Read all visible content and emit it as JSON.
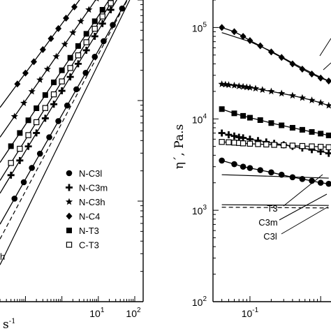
{
  "chart_data": [
    {
      "panel": "left",
      "type": "line",
      "xscale": "log",
      "yscale": "log",
      "xlim": [
        0.02,
        170
      ],
      "ylim": [
        0.001,
        1
      ],
      "x_tick_labels": [
        {
          "value": 10,
          "base": "10",
          "exp": "1"
        },
        {
          "value": 100,
          "base": "10",
          "exp": "2"
        }
      ],
      "xlabel_fragment": {
        "text": "s",
        "exp": "-1"
      },
      "cut_text": "h",
      "legend": {
        "placement": "lower-right",
        "entries": [
          {
            "label": "N-C3l",
            "marker": "circle"
          },
          {
            "label": "N-C3m",
            "marker": "plus"
          },
          {
            "label": "N-C3h",
            "marker": "star"
          },
          {
            "label": "N-C4",
            "marker": "diamond"
          },
          {
            "label": "N-T3",
            "marker": "square"
          },
          {
            "label": "C-T3",
            "marker": "open-square"
          }
        ]
      },
      "series": [
        {
          "marker": "diamond",
          "a": 0.58,
          "b": 0.49,
          "x": [
            0.06,
            0.1,
            0.17,
            0.3,
            0.5,
            0.8,
            1.3,
            2.2,
            3.7,
            6,
            10,
            17,
            30,
            50,
            85,
            140
          ]
        },
        {
          "marker": "star",
          "a": 0.33,
          "b": 0.52,
          "x": [
            0.05,
            0.09,
            0.15,
            0.25,
            0.4,
            0.7,
            1.2,
            2,
            3.3,
            5.5,
            9,
            15,
            26,
            45,
            75,
            130
          ]
        },
        {
          "marker": "square",
          "a": 0.2,
          "b": 0.54,
          "x": [
            0.04,
            0.07,
            0.12,
            0.2,
            0.35,
            0.6,
            1,
            1.7,
            2.8,
            4.7,
            8,
            13,
            22,
            38,
            65,
            110,
            160
          ]
        },
        {
          "marker": "open-square",
          "a": 0.155,
          "b": 0.58,
          "x": [
            0.04,
            0.07,
            0.12,
            0.2,
            0.35,
            0.6,
            1,
            1.7,
            2.8,
            4.7,
            8,
            13,
            22,
            38,
            65,
            110,
            160
          ]
        },
        {
          "marker": "plus",
          "a": 0.125,
          "b": 0.6,
          "x": [
            0.04,
            0.07,
            0.12,
            0.2,
            0.35,
            0.6,
            1,
            1.7,
            2.8,
            4.7,
            8,
            13,
            22,
            38,
            65,
            110,
            160
          ]
        },
        {
          "marker": "circle",
          "a": 0.072,
          "b": 0.64,
          "x": [
            0.05,
            0.09,
            0.15,
            0.25,
            0.45,
            0.8,
            1.4,
            2.5,
            4.5,
            8,
            14,
            25,
            45,
            80,
            140
          ]
        }
      ],
      "extra_lines": [
        {
          "style": "solid",
          "a": 0.042,
          "b": 0.74
        },
        {
          "style": "dashed",
          "a": 0.06,
          "b": 0.68
        }
      ]
    },
    {
      "panel": "right",
      "type": "line",
      "xscale": "log",
      "yscale": "log",
      "xlim": [
        0.03,
        1.4
      ],
      "ylim": [
        100,
        200000
      ],
      "x_tick_labels": [
        {
          "value": 0.1,
          "base": "10",
          "exp": "-1"
        }
      ],
      "y_tick_labels": [
        {
          "value": 100,
          "base": "10",
          "exp": "2"
        },
        {
          "value": 1000,
          "base": "10",
          "exp": "3"
        },
        {
          "value": 10000,
          "base": "10",
          "exp": "4"
        },
        {
          "value": 100000,
          "base": "10",
          "exp": "5"
        }
      ],
      "ylabel": "η´, Pa.s",
      "line_labels": [
        "T3",
        "C3m",
        "C3l"
      ],
      "series": [
        {
          "marker": "diamond",
          "x": [
            0.04,
            0.06,
            0.08,
            0.1,
            0.14,
            0.2,
            0.28,
            0.4,
            0.55,
            0.75,
            1.0,
            1.3
          ],
          "y": [
            100000,
            90000,
            80000,
            72000,
            63000,
            54000,
            47000,
            40000,
            35000,
            31000,
            28000,
            26000
          ]
        },
        {
          "marker": "star",
          "x": [
            0.04,
            0.045,
            0.05,
            0.06,
            0.07,
            0.08,
            0.09,
            0.1,
            0.12,
            0.15,
            0.2,
            0.28,
            0.4,
            0.55,
            0.75,
            1.0,
            1.3
          ],
          "y": [
            24000,
            23800,
            23500,
            23200,
            22800,
            22500,
            22200,
            22000,
            21500,
            20800,
            20000,
            19000,
            18000,
            17000,
            16000,
            15000,
            14000
          ]
        },
        {
          "marker": "square",
          "x": [
            0.04,
            0.06,
            0.08,
            0.1,
            0.14,
            0.2,
            0.28,
            0.4,
            0.55,
            0.75,
            1.0,
            1.3
          ],
          "y": [
            12800,
            11500,
            10800,
            10300,
            9700,
            9000,
            8500,
            8000,
            7600,
            7200,
            6900,
            6600
          ]
        },
        {
          "marker": "plus",
          "x": [
            0.04,
            0.05,
            0.06,
            0.07,
            0.08,
            0.1,
            0.13,
            0.17,
            0.22,
            0.3,
            0.4,
            0.55,
            0.75,
            1.0,
            1.3
          ],
          "y": [
            7000,
            6700,
            6500,
            6300,
            6200,
            6000,
            5800,
            5600,
            5400,
            5200,
            5000,
            4800,
            4600,
            4400,
            4200
          ]
        },
        {
          "marker": "open-square",
          "x": [
            0.04,
            0.05,
            0.06,
            0.07,
            0.08,
            0.1,
            0.13,
            0.17,
            0.22,
            0.3,
            0.4,
            0.55,
            0.75,
            1.0,
            1.3
          ],
          "y": [
            5600,
            5550,
            5500,
            5450,
            5400,
            5350,
            5300,
            5250,
            5200,
            5150,
            5100,
            5050,
            5000,
            4950,
            4900
          ]
        },
        {
          "marker": "circle",
          "x": [
            0.04,
            0.06,
            0.08,
            0.1,
            0.14,
            0.2,
            0.28,
            0.4,
            0.55,
            0.75,
            1.0,
            1.3
          ],
          "y": [
            3500,
            3200,
            3000,
            2900,
            2750,
            2600,
            2450,
            2300,
            2200,
            2100,
            2000,
            1950
          ]
        }
      ],
      "extra_lines": [
        {
          "style": "solid",
          "x": [
            0.04,
            1.3
          ],
          "y": [
            2450,
            2250
          ]
        },
        {
          "style": "solid",
          "x": [
            0.04,
            1.3
          ],
          "y": [
            1150,
            1130
          ]
        },
        {
          "style": "dashed",
          "x": [
            0.04,
            1.3
          ],
          "y": [
            1080,
            1060
          ]
        }
      ]
    }
  ]
}
